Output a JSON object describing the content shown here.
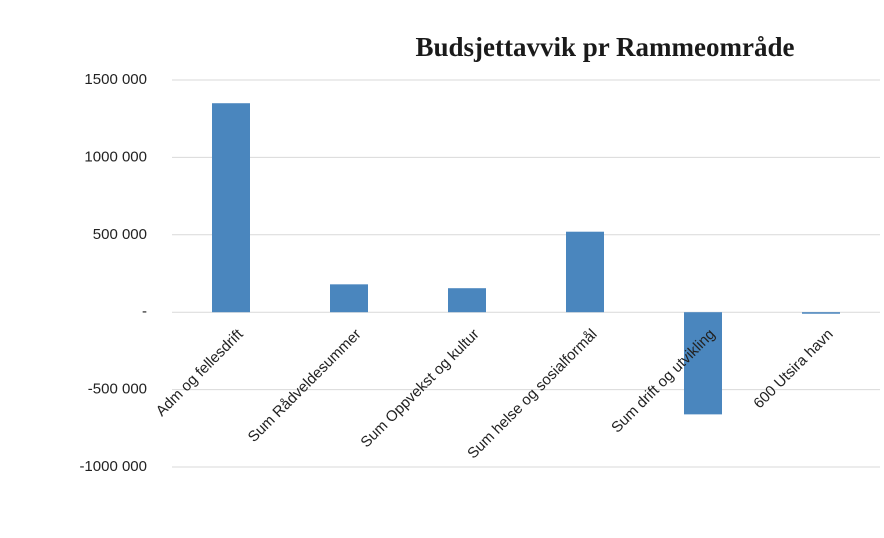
{
  "chart_data": {
    "type": "bar",
    "title": "Budsjettavvik pr Rammeområde",
    "categories": [
      "Adm og fellesdrift",
      "Sum Rådveldesummer",
      "Sum Oppvekst og kultur",
      "Sum helse og sosialformål",
      "Sum drift og utvikling",
      "600 Utsira havn"
    ],
    "values": [
      1350000,
      180000,
      155000,
      520000,
      -660000,
      -10000
    ],
    "color": "#4a86be",
    "ylim": [
      -1000000,
      1500000
    ],
    "yticks": [
      {
        "value": -1000000,
        "label": "-1000 000"
      },
      {
        "value": -500000,
        "label": "-500 000"
      },
      {
        "value": 0,
        "label": "-"
      },
      {
        "value": 500000,
        "label": "500 000"
      },
      {
        "value": 1000000,
        "label": "1000 000"
      },
      {
        "value": 1500000,
        "label": "1500 000"
      }
    ],
    "grid": true
  }
}
